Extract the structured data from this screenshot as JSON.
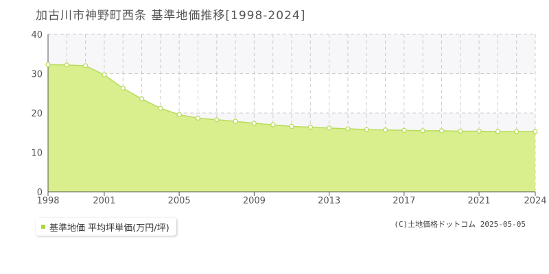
{
  "title": "加古川市神野町西条 基準地価推移[1998-2024]",
  "legend": {
    "label": "基準地価 平均坪単価(万円/坪)",
    "color": "#a8d83c"
  },
  "copyright": "(C)土地価格ドットコム 2025-05-05",
  "colors": {
    "fill": "#d9ee8c",
    "line": "#b7dc5a",
    "point_fill": "#ffffff",
    "grid": "#cccccc",
    "axis": "#555555",
    "band": "#f7f7f9"
  },
  "chart_data": {
    "type": "area",
    "x": [
      1998,
      1999,
      2000,
      2001,
      2002,
      2003,
      2004,
      2005,
      2006,
      2007,
      2008,
      2009,
      2010,
      2011,
      2012,
      2013,
      2014,
      2015,
      2016,
      2017,
      2018,
      2019,
      2020,
      2021,
      2022,
      2023,
      2024
    ],
    "series": [
      {
        "name": "基準地価 平均坪単価(万円/坪)",
        "values": [
          32.3,
          32.2,
          32.0,
          29.7,
          26.3,
          23.6,
          21.2,
          19.6,
          18.7,
          18.3,
          17.9,
          17.4,
          17.0,
          16.6,
          16.4,
          16.2,
          16.0,
          15.8,
          15.7,
          15.6,
          15.5,
          15.5,
          15.4,
          15.4,
          15.3,
          15.3,
          15.3
        ]
      }
    ],
    "xticks": [
      "1998",
      "2001",
      "2005",
      "2009",
      "2013",
      "2017",
      "2021",
      "2024"
    ],
    "yticks": [
      "0",
      "10",
      "20",
      "30",
      "40"
    ],
    "xlim": [
      1998,
      2024
    ],
    "ylim": [
      0,
      40
    ],
    "grid": true
  }
}
